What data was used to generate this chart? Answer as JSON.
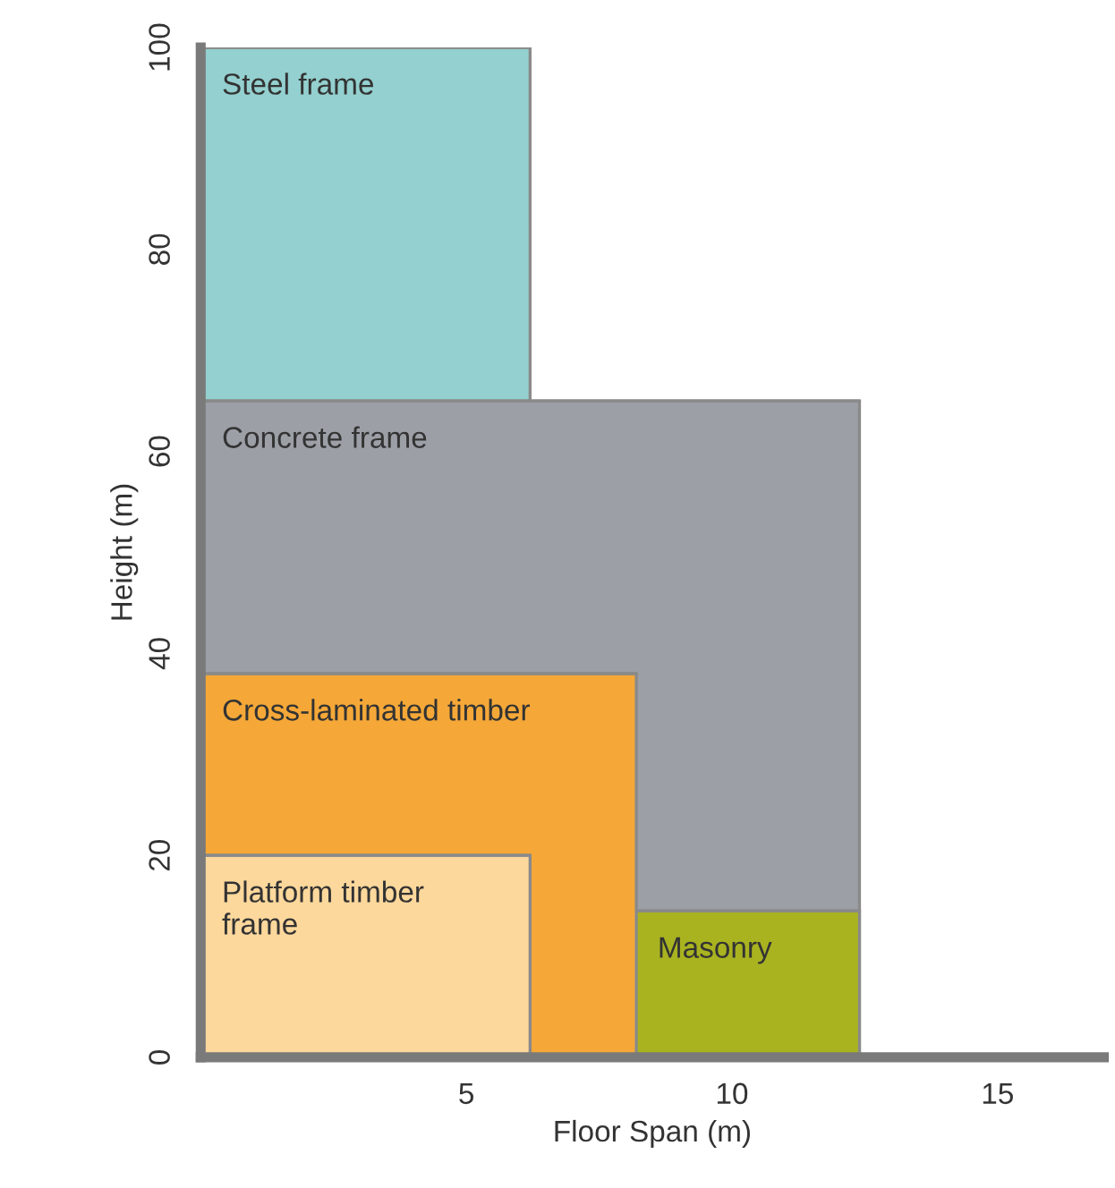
{
  "chart_data": {
    "type": "area",
    "xlabel": "Floor Span (m)",
    "ylabel": "Height (m)",
    "xlim": [
      0,
      17
    ],
    "xticks": [
      5,
      10,
      15
    ],
    "ylim": [
      0,
      100
    ],
    "yticks": [
      0,
      20,
      40,
      60,
      80,
      100
    ],
    "grid": false,
    "legend": false,
    "series": [
      {
        "name": "Steel frame",
        "color": "#93d0cf",
        "x": [
          0,
          6.2
        ],
        "values": [
          100,
          100
        ]
      },
      {
        "name": "Concrete frame",
        "color": "#9c9fa6",
        "x": [
          0,
          12.4
        ],
        "values": [
          65,
          65
        ]
      },
      {
        "name": "Masonry",
        "color": "#a9b320",
        "x": [
          0,
          12.4
        ],
        "values": [
          14.5,
          14.5
        ]
      },
      {
        "name": "Cross-laminated timber",
        "color": "#f5a838",
        "x": [
          0,
          8.2
        ],
        "values": [
          38,
          38
        ]
      },
      {
        "name": "Platform timber\nframe",
        "color": "#fdd89c",
        "x": [
          0,
          6.2
        ],
        "values": [
          20,
          20
        ]
      }
    ]
  }
}
